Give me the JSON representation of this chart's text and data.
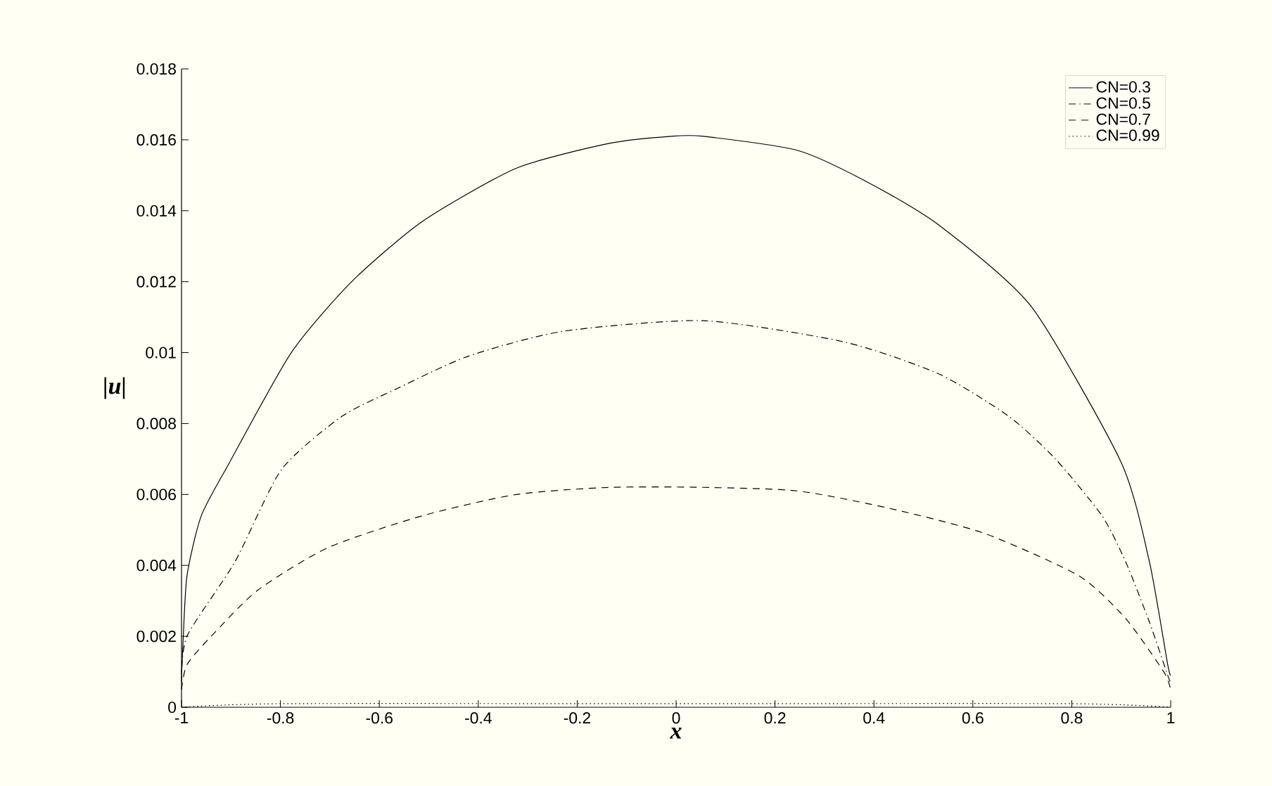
{
  "chart_data": {
    "type": "line",
    "xlabel": "x",
    "ylabel": "|u|",
    "xlim": [
      -1,
      1
    ],
    "ylim": [
      0,
      0.018
    ],
    "xticks": [
      -1,
      -0.8,
      -0.6,
      -0.4,
      -0.2,
      0,
      0.2,
      0.4,
      0.6,
      0.8,
      1
    ],
    "yticks": [
      0,
      0.002,
      0.004,
      0.006,
      0.008,
      0.01,
      0.012,
      0.014,
      0.016,
      0.018
    ],
    "grid": false,
    "legend": "top right",
    "marker": "none",
    "series": [
      {
        "name": "CN=0.3",
        "color": "#000000",
        "line_style": "solid",
        "x": [
          -1,
          -0.997,
          -0.989,
          -0.96,
          -0.903,
          -0.778,
          -0.656,
          -0.513,
          -0.323,
          -0.135,
          -0.01,
          0.055,
          0.246,
          0.388,
          0.531,
          0.718,
          0.9,
          0.957,
          0.994,
          1
        ],
        "values": [
          0.0009,
          0.0018,
          0.0037,
          0.0054,
          0.0069,
          0.01,
          0.012,
          0.0137,
          0.0152,
          0.0159,
          0.0161,
          0.0161,
          0.0157,
          0.0148,
          0.0136,
          0.0113,
          0.0069,
          0.0041,
          0.0012,
          0.0009
        ]
      },
      {
        "name": "CN=0.5",
        "color": "#000000",
        "line_style": "dashdotted",
        "x": [
          -1,
          -0.989,
          -0.892,
          -0.798,
          -0.676,
          -0.562,
          -0.42,
          -0.229,
          0.055,
          0.34,
          0.531,
          0.673,
          0.767,
          0.861,
          0.909,
          0.957,
          0.994,
          1
        ],
        "values": [
          0.0007,
          0.002,
          0.0041,
          0.0067,
          0.0082,
          0.009,
          0.0099,
          0.0106,
          0.0109,
          0.0103,
          0.0094,
          0.0082,
          0.007,
          0.0054,
          0.0041,
          0.0024,
          0.0009,
          0.0007
        ]
      },
      {
        "name": "CN=0.7",
        "color": "#000000",
        "line_style": "dashed",
        "x": [
          -1,
          -0.989,
          -0.94,
          -0.846,
          -0.704,
          -0.513,
          -0.323,
          -0.135,
          0.055,
          0.246,
          0.434,
          0.624,
          0.815,
          0.909,
          0.986,
          1
        ],
        "values": [
          0.0005,
          0.0012,
          0.002,
          0.0033,
          0.0045,
          0.0054,
          0.006,
          0.0062,
          0.0062,
          0.0061,
          0.0056,
          0.0049,
          0.0037,
          0.0025,
          0.001,
          0.0005
        ]
      },
      {
        "name": "CN=0.99",
        "color": "#000000",
        "line_style": "dotted",
        "x": [
          -1,
          -0.8,
          0,
          0.8,
          1
        ],
        "values": [
          0,
          0.0001,
          0.0001,
          0.0001,
          0
        ]
      }
    ]
  }
}
